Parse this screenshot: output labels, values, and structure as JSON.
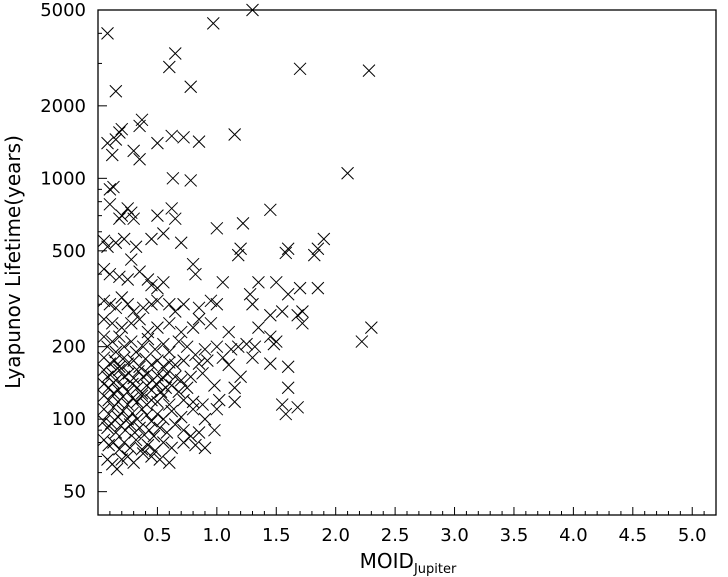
{
  "chart_data": {
    "type": "scatter",
    "title": "",
    "xlabel": "MOID",
    "xlabel_subscript": "Jupiter",
    "ylabel": "Lyapunov Lifetime(years)",
    "xlim": [
      0.0,
      5.2
    ],
    "ylim": [
      40,
      5000
    ],
    "yscale": "log",
    "grid": false,
    "marker": "x",
    "x_ticks": [
      0.5,
      1.0,
      1.5,
      2.0,
      2.5,
      3.0,
      3.5,
      4.0,
      4.5,
      5.0
    ],
    "x_tick_labels": [
      "0.5",
      "1.0",
      "1.5",
      "2.0",
      "2.5",
      "3.0",
      "3.5",
      "4.0",
      "4.5",
      "5.0"
    ],
    "y_ticks": [
      50,
      100,
      200,
      500,
      1000,
      2000,
      5000
    ],
    "y_tick_labels": [
      "50",
      "100",
      "200",
      "500",
      "1000",
      "2000",
      "5000"
    ],
    "series": [
      {
        "points": [
          [
            0.08,
            4000
          ],
          [
            0.97,
            4400
          ],
          [
            1.3,
            5000
          ],
          [
            0.65,
            3300
          ],
          [
            0.6,
            2900
          ],
          [
            1.7,
            2850
          ],
          [
            2.28,
            2800
          ],
          [
            0.78,
            2400
          ],
          [
            0.15,
            2300
          ],
          [
            0.2,
            1600
          ],
          [
            0.18,
            1550
          ],
          [
            0.37,
            1750
          ],
          [
            0.35,
            1650
          ],
          [
            0.08,
            1400
          ],
          [
            0.15,
            1450
          ],
          [
            0.62,
            1500
          ],
          [
            0.72,
            1480
          ],
          [
            0.85,
            1420
          ],
          [
            1.15,
            1520
          ],
          [
            0.12,
            1250
          ],
          [
            0.3,
            1300
          ],
          [
            0.35,
            1200
          ],
          [
            0.5,
            1400
          ],
          [
            0.63,
            1000
          ],
          [
            0.78,
            980
          ],
          [
            2.1,
            1050
          ],
          [
            0.1,
            900
          ],
          [
            0.13,
            920
          ],
          [
            0.1,
            780
          ],
          [
            0.2,
            700
          ],
          [
            0.25,
            750
          ],
          [
            0.28,
            720
          ],
          [
            0.18,
            680
          ],
          [
            0.3,
            680
          ],
          [
            0.5,
            700
          ],
          [
            0.62,
            750
          ],
          [
            0.65,
            680
          ],
          [
            1.0,
            620
          ],
          [
            1.22,
            650
          ],
          [
            1.45,
            740
          ],
          [
            0.05,
            550
          ],
          [
            0.08,
            520
          ],
          [
            0.15,
            540
          ],
          [
            0.22,
            560
          ],
          [
            0.28,
            460
          ],
          [
            0.32,
            520
          ],
          [
            0.45,
            560
          ],
          [
            0.55,
            590
          ],
          [
            0.7,
            540
          ],
          [
            1.2,
            510
          ],
          [
            1.18,
            480
          ],
          [
            1.58,
            490
          ],
          [
            1.6,
            510
          ],
          [
            1.85,
            510
          ],
          [
            1.9,
            560
          ],
          [
            1.82,
            480
          ],
          [
            0.05,
            420
          ],
          [
            0.1,
            400
          ],
          [
            0.18,
            390
          ],
          [
            0.25,
            380
          ],
          [
            0.35,
            410
          ],
          [
            0.42,
            380
          ],
          [
            0.45,
            360
          ],
          [
            0.5,
            350
          ],
          [
            0.55,
            370
          ],
          [
            0.8,
            440
          ],
          [
            0.82,
            400
          ],
          [
            1.05,
            370
          ],
          [
            1.28,
            330
          ],
          [
            1.35,
            370
          ],
          [
            1.5,
            370
          ],
          [
            1.6,
            330
          ],
          [
            1.7,
            350
          ],
          [
            1.85,
            350
          ],
          [
            0.05,
            310
          ],
          [
            0.1,
            300
          ],
          [
            0.15,
            290
          ],
          [
            0.2,
            320
          ],
          [
            0.25,
            300
          ],
          [
            0.3,
            280
          ],
          [
            0.38,
            290
          ],
          [
            0.45,
            300
          ],
          [
            0.5,
            310
          ],
          [
            0.6,
            300
          ],
          [
            0.65,
            280
          ],
          [
            0.72,
            300
          ],
          [
            0.85,
            290
          ],
          [
            0.95,
            310
          ],
          [
            1.0,
            300
          ],
          [
            1.3,
            300
          ],
          [
            1.45,
            270
          ],
          [
            1.55,
            280
          ],
          [
            1.68,
            270
          ],
          [
            1.72,
            280
          ],
          [
            0.05,
            260
          ],
          [
            0.12,
            250
          ],
          [
            0.2,
            240
          ],
          [
            0.28,
            250
          ],
          [
            0.35,
            260
          ],
          [
            0.42,
            230
          ],
          [
            0.5,
            240
          ],
          [
            0.6,
            250
          ],
          [
            0.7,
            230
          ],
          [
            0.8,
            240
          ],
          [
            0.85,
            260
          ],
          [
            0.95,
            250
          ],
          [
            1.1,
            230
          ],
          [
            1.35,
            240
          ],
          [
            1.45,
            220
          ],
          [
            1.5,
            210
          ],
          [
            1.72,
            250
          ],
          [
            2.3,
            240
          ],
          [
            2.22,
            210
          ],
          [
            0.05,
            220
          ],
          [
            0.08,
            200
          ],
          [
            0.12,
            210
          ],
          [
            0.15,
            190
          ],
          [
            0.18,
            220
          ],
          [
            0.22,
            200
          ],
          [
            0.28,
            210
          ],
          [
            0.32,
            190
          ],
          [
            0.38,
            200
          ],
          [
            0.42,
            215
          ],
          [
            0.48,
            195
          ],
          [
            0.55,
            205
          ],
          [
            0.6,
            190
          ],
          [
            0.68,
            210
          ],
          [
            0.75,
            200
          ],
          [
            0.82,
            185
          ],
          [
            0.9,
            195
          ],
          [
            1.0,
            200
          ],
          [
            1.12,
            195
          ],
          [
            1.18,
            200
          ],
          [
            1.25,
            205
          ],
          [
            1.32,
            200
          ],
          [
            1.48,
            205
          ],
          [
            0.05,
            180
          ],
          [
            0.1,
            170
          ],
          [
            0.14,
            175
          ],
          [
            0.18,
            165
          ],
          [
            0.22,
            180
          ],
          [
            0.25,
            170
          ],
          [
            0.3,
            175
          ],
          [
            0.35,
            165
          ],
          [
            0.4,
            178
          ],
          [
            0.45,
            168
          ],
          [
            0.5,
            175
          ],
          [
            0.55,
            165
          ],
          [
            0.6,
            172
          ],
          [
            0.65,
            168
          ],
          [
            0.72,
            175
          ],
          [
            0.85,
            170
          ],
          [
            0.92,
            175
          ],
          [
            1.05,
            180
          ],
          [
            1.1,
            168
          ],
          [
            1.2,
            150
          ],
          [
            1.3,
            180
          ],
          [
            1.45,
            170
          ],
          [
            1.6,
            165
          ],
          [
            0.05,
            160
          ],
          [
            0.08,
            150
          ],
          [
            0.12,
            155
          ],
          [
            0.15,
            145
          ],
          [
            0.18,
            160
          ],
          [
            0.22,
            150
          ],
          [
            0.26,
            155
          ],
          [
            0.3,
            148
          ],
          [
            0.34,
            158
          ],
          [
            0.38,
            150
          ],
          [
            0.42,
            155
          ],
          [
            0.46,
            145
          ],
          [
            0.5,
            152
          ],
          [
            0.55,
            148
          ],
          [
            0.58,
            155
          ],
          [
            0.65,
            150
          ],
          [
            0.7,
            145
          ],
          [
            0.78,
            150
          ],
          [
            0.88,
            155
          ],
          [
            0.05,
            140
          ],
          [
            0.09,
            135
          ],
          [
            0.13,
            142
          ],
          [
            0.17,
            132
          ],
          [
            0.21,
            138
          ],
          [
            0.25,
            130
          ],
          [
            0.29,
            140
          ],
          [
            0.33,
            135
          ],
          [
            0.37,
            128
          ],
          [
            0.41,
            138
          ],
          [
            0.45,
            132
          ],
          [
            0.49,
            140
          ],
          [
            0.53,
            130
          ],
          [
            0.57,
            135
          ],
          [
            0.62,
            138
          ],
          [
            0.68,
            130
          ],
          [
            0.75,
            135
          ],
          [
            0.98,
            138
          ],
          [
            1.15,
            135
          ],
          [
            1.6,
            135
          ],
          [
            0.05,
            125
          ],
          [
            0.09,
            120
          ],
          [
            0.13,
            128
          ],
          [
            0.17,
            118
          ],
          [
            0.21,
            124
          ],
          [
            0.25,
            115
          ],
          [
            0.29,
            122
          ],
          [
            0.33,
            118
          ],
          [
            0.37,
            125
          ],
          [
            0.41,
            115
          ],
          [
            0.45,
            120
          ],
          [
            0.5,
            118
          ],
          [
            0.55,
            125
          ],
          [
            0.6,
            115
          ],
          [
            0.72,
            120
          ],
          [
            0.8,
            118
          ],
          [
            0.88,
            115
          ],
          [
            1.02,
            120
          ],
          [
            1.15,
            118
          ],
          [
            1.55,
            115
          ],
          [
            1.58,
            105
          ],
          [
            1.68,
            112
          ],
          [
            0.05,
            110
          ],
          [
            0.09,
            105
          ],
          [
            0.13,
            112
          ],
          [
            0.17,
            102
          ],
          [
            0.21,
            108
          ],
          [
            0.25,
            100
          ],
          [
            0.29,
            106
          ],
          [
            0.33,
            100
          ],
          [
            0.37,
            110
          ],
          [
            0.41,
            104
          ],
          [
            0.45,
            98
          ],
          [
            0.5,
            105
          ],
          [
            0.55,
            100
          ],
          [
            0.62,
            108
          ],
          [
            0.7,
            102
          ],
          [
            0.8,
            110
          ],
          [
            0.9,
            100
          ],
          [
            1.0,
            110
          ],
          [
            0.05,
            98
          ],
          [
            0.08,
            92
          ],
          [
            0.11,
            96
          ],
          [
            0.15,
            88
          ],
          [
            0.19,
            94
          ],
          [
            0.23,
            90
          ],
          [
            0.27,
            95
          ],
          [
            0.31,
            88
          ],
          [
            0.35,
            92
          ],
          [
            0.39,
            86
          ],
          [
            0.43,
            90
          ],
          [
            0.47,
            85
          ],
          [
            0.52,
            92
          ],
          [
            0.58,
            88
          ],
          [
            0.65,
            95
          ],
          [
            0.72,
            90
          ],
          [
            0.78,
            85
          ],
          [
            0.85,
            88
          ],
          [
            0.98,
            90
          ],
          [
            0.05,
            82
          ],
          [
            0.09,
            78
          ],
          [
            0.13,
            80
          ],
          [
            0.18,
            75
          ],
          [
            0.22,
            80
          ],
          [
            0.27,
            76
          ],
          [
            0.32,
            82
          ],
          [
            0.37,
            75
          ],
          [
            0.42,
            78
          ],
          [
            0.48,
            74
          ],
          [
            0.55,
            80
          ],
          [
            0.62,
            76
          ],
          [
            0.72,
            80
          ],
          [
            0.82,
            78
          ],
          [
            0.9,
            76
          ],
          [
            0.08,
            68
          ],
          [
            0.12,
            65
          ],
          [
            0.16,
            62
          ],
          [
            0.2,
            68
          ],
          [
            0.25,
            70
          ],
          [
            0.3,
            66
          ],
          [
            0.38,
            72
          ],
          [
            0.45,
            70
          ],
          [
            0.52,
            68
          ],
          [
            0.6,
            66
          ]
        ]
      }
    ]
  }
}
